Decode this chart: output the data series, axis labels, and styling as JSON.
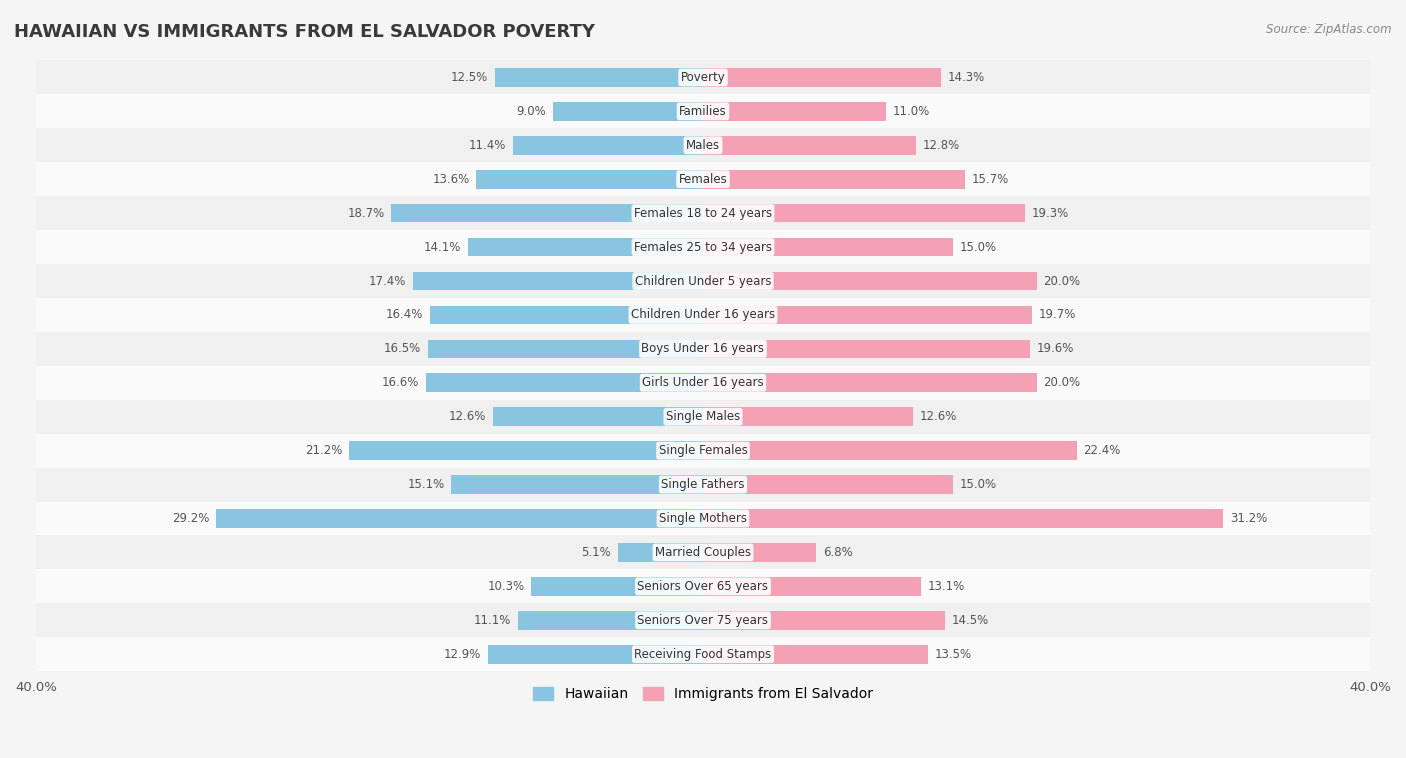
{
  "title": "HAWAIIAN VS IMMIGRANTS FROM EL SALVADOR POVERTY",
  "source": "Source: ZipAtlas.com",
  "categories": [
    "Poverty",
    "Families",
    "Males",
    "Females",
    "Females 18 to 24 years",
    "Females 25 to 34 years",
    "Children Under 5 years",
    "Children Under 16 years",
    "Boys Under 16 years",
    "Girls Under 16 years",
    "Single Males",
    "Single Females",
    "Single Fathers",
    "Single Mothers",
    "Married Couples",
    "Seniors Over 65 years",
    "Seniors Over 75 years",
    "Receiving Food Stamps"
  ],
  "hawaiian": [
    12.5,
    9.0,
    11.4,
    13.6,
    18.7,
    14.1,
    17.4,
    16.4,
    16.5,
    16.6,
    12.6,
    21.2,
    15.1,
    29.2,
    5.1,
    10.3,
    11.1,
    12.9
  ],
  "el_salvador": [
    14.3,
    11.0,
    12.8,
    15.7,
    19.3,
    15.0,
    20.0,
    19.7,
    19.6,
    20.0,
    12.6,
    22.4,
    15.0,
    31.2,
    6.8,
    13.1,
    14.5,
    13.5
  ],
  "hawaiian_color": "#89c4e1",
  "el_salvador_color": "#f4a0b5",
  "background_color": "#f5f5f5",
  "row_color_even": "#f0f0f0",
  "row_color_odd": "#fafafa",
  "axis_max": 40.0,
  "legend_labels": [
    "Hawaiian",
    "Immigrants from El Salvador"
  ],
  "bar_height": 0.55
}
